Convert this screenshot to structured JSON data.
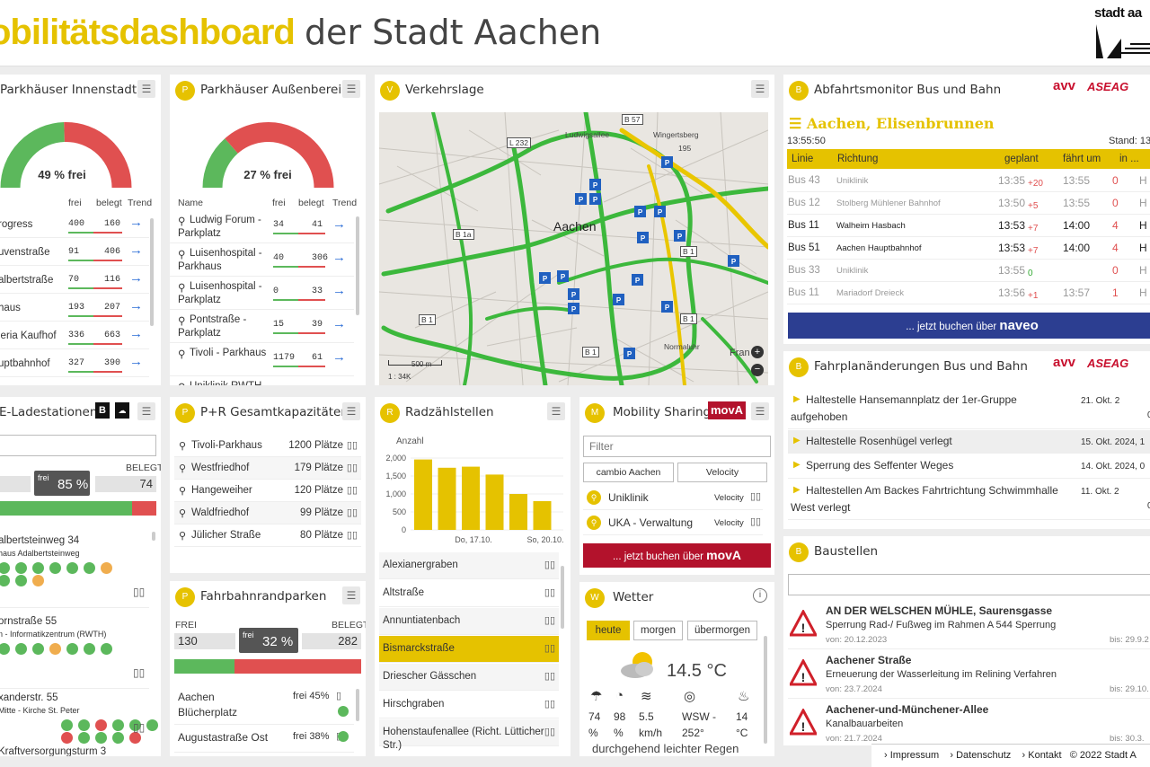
{
  "header": {
    "title_bold": "obilitätsdashboard",
    "title_rest": "der Stadt Aachen",
    "logo_text": "stadt aa"
  },
  "parkhaeuser_innen": {
    "title": "Parkhäuser Innenstadt",
    "gauge": "49 % frei",
    "gauge_free_pct": 49,
    "col_free": "frei",
    "col_occ": "belegt",
    "col_trend": "Trend",
    "rows": [
      {
        "name": "rogress",
        "free": "400",
        "occ": "160"
      },
      {
        "name": "uvenstraße",
        "free": "91",
        "occ": "406"
      },
      {
        "name": "albertstraße",
        "free": "70",
        "occ": "116"
      },
      {
        "name": "haus",
        "free": "193",
        "occ": "207"
      },
      {
        "name": "leria Kaufhof",
        "free": "336",
        "occ": "663"
      },
      {
        "name": "uptbahnhof",
        "free": "327",
        "occ": "390"
      }
    ]
  },
  "parkhaeuser_aussen": {
    "title": "Parkhäuser Außenbereic",
    "gauge": "27 % frei",
    "gauge_free_pct": 27,
    "col_name": "Name",
    "col_free": "frei",
    "col_occ": "belegt",
    "col_trend": "Trend",
    "rows": [
      {
        "name1": "Ludwig Forum -",
        "name2": "Parkplatz",
        "free": "34",
        "occ": "41"
      },
      {
        "name1": "Luisenhospital -",
        "name2": "Parkhaus",
        "free": "40",
        "occ": "306"
      },
      {
        "name1": "Luisenhospital -",
        "name2": "Parkplatz",
        "free": "0",
        "occ": "33"
      },
      {
        "name1": "Pontstraße -",
        "name2": "Parkplatz",
        "free": "15",
        "occ": "39"
      },
      {
        "name1": "Tivoli - Parkhaus",
        "name2": "",
        "free": "1179",
        "occ": "61"
      },
      {
        "name1": "Uniklinik RWTH",
        "name2": "",
        "free": "",
        "occ": ""
      }
    ]
  },
  "verkehrslage": {
    "title": "Verkehrslage",
    "city": "Aachen",
    "scale": "500 m",
    "scale2": "1 : 34K",
    "labels": [
      "B 57",
      "L 232",
      "Wingertsberg",
      "195",
      "B 1a",
      "B 1",
      "B 1",
      "B 1",
      "B 1",
      "Fran",
      "Normaluhr",
      "Ludwigsallee"
    ]
  },
  "abfahrt": {
    "title": "Abfahrtsmonitor Bus und Bahn",
    "brand1": "avv",
    "brand2": "ASEAG",
    "stop": "Aachen, Elisenbrunnen",
    "time": "13:55:50",
    "stand": "Stand: 13",
    "cols": [
      "Linie",
      "Richtung",
      "geplant",
      "fährt um",
      "in ..."
    ],
    "rows": [
      {
        "line": "Bus 43",
        "dir": "Uniklinik",
        "plan": "13:35",
        "delay": "+20",
        "actual": "13:55",
        "in": "0",
        "h": "H"
      },
      {
        "line": "Bus 12",
        "dir": "Stolberg Mühlener Bahnhof",
        "plan": "13:50",
        "delay": "+5",
        "actual": "13:55",
        "in": "0",
        "h": "H"
      },
      {
        "line": "Bus 11",
        "dir": "Walheim Hasbach",
        "plan": "13:53",
        "delay": "+7",
        "actual": "14:00",
        "in": "4",
        "h": "H"
      },
      {
        "line": "Bus 51",
        "dir": "Aachen Hauptbahnhof",
        "plan": "13:53",
        "delay": "+7",
        "actual": "14:00",
        "in": "4",
        "h": "H"
      },
      {
        "line": "Bus 33",
        "dir": "Uniklinik",
        "plan": "13:55",
        "delay": "0",
        "actual": "",
        "in": "0",
        "h": "H"
      },
      {
        "line": "Bus 11",
        "dir": "Mariadorf Dreieck",
        "plan": "13:56",
        "delay": "+1",
        "actual": "13:57",
        "in": "1",
        "h": "H"
      }
    ],
    "button": "... jetzt buchen über ",
    "button_brand": "naveo"
  },
  "fahrplan": {
    "title": "Fahrplanänderungen Bus und Bahn",
    "brand1": "avv",
    "brand2": "ASEAG",
    "items": [
      {
        "l1": "Haltestelle Hansemannplatz der 1er-Gruppe",
        "l2": "aufgehoben",
        "date": "21. Okt. 2",
        "date2": "0"
      },
      {
        "l1": "Haltestelle Rosenhügel verlegt",
        "l2": "",
        "date": "15. Okt. 2024, 1",
        "date2": ""
      },
      {
        "l1": "Sperrung des Seffenter Weges",
        "l2": "",
        "date": "14. Okt. 2024, 0",
        "date2": ""
      },
      {
        "l1": "Haltestellen Am Backes Fahrtrichtung Schwimmhalle",
        "l2": "West verlegt",
        "date": "11. Okt. 2",
        "date2": "0"
      }
    ]
  },
  "baustellen": {
    "title": "Baustellen",
    "items": [
      {
        "t": "AN DER WELSCHEN MÜHLE, Saurensgasse",
        "d": "Sperrung Rad-/ Fußweg im Rahmen A 544 Sperrung",
        "von": "von: 20.12.2023",
        "bis": "bis: 29.9.2"
      },
      {
        "t": "Aachener Straße",
        "d": "Erneuerung der Wasserleitung im Relining Verfahren",
        "von": "von: 23.7.2024",
        "bis": "bis: 29.10."
      },
      {
        "t": "Aachener-und-Münchener-Allee",
        "d": "Kanalbauarbeiten",
        "von": "von: 21.7.2024",
        "bis": "bis: 30.3."
      }
    ]
  },
  "eladen": {
    "title": "E-Ladestationen",
    "col_occ": "BELEGT",
    "free_label": "frei",
    "free_pct": "85 %",
    "occ": "74",
    "free_fraction": 0.85,
    "items": [
      {
        "t": "albertsteinweg 34",
        "s": "haus Adalbertsteinweg"
      },
      {
        "t": "ornstraße 55",
        "s": "n - Informatikzentrum (RWTH)"
      },
      {
        "t": "xanderstr. 55",
        "s": "Mitte - Kirche St. Peter"
      },
      {
        "t": "Kraftversorgungsturm 3",
        "s": ""
      }
    ]
  },
  "pr": {
    "title": "P+R Gesamtkapazitäten",
    "rows": [
      {
        "n": "Tivoli-Parkhaus",
        "c": "1200 Plätze"
      },
      {
        "n": "Westfriedhof",
        "c": "179 Plätze"
      },
      {
        "n": "Hangeweiher",
        "c": "120 Plätze"
      },
      {
        "n": "Waldfriedhof",
        "c": "99 Plätze"
      },
      {
        "n": "Jülicher Straße",
        "c": "80 Plätze"
      }
    ]
  },
  "fahrbahn": {
    "title": "Fahrbahnrandparken",
    "l_free": "FREI",
    "l_occ": "BELEGT",
    "free": "130",
    "free_label": "frei",
    "pct": "32 %",
    "occ": "282",
    "free_fraction": 0.32,
    "rows": [
      {
        "n1": "Aachen",
        "n2": "Blücherplatz",
        "p": "frei 45%"
      },
      {
        "n1": "Augustastraße Ost",
        "n2": "",
        "p": "frei 38%"
      }
    ]
  },
  "rad": {
    "title": "Radzählstellen",
    "ylabel": "Anzahl",
    "ticks": [
      "2,000",
      "1,500",
      "1,000",
      "500",
      "0"
    ],
    "xt1": "Do, 17.10.",
    "xt2": "So, 20.10.",
    "rows": [
      "Alexianergraben",
      "Altstraße",
      "Annuntiatenbach",
      "Bismarckstraße",
      "Driescher Gässchen",
      "Hirschgraben",
      "Hohenstaufenallee (Richt. Lütticher",
      "Str.)"
    ]
  },
  "chart_data": {
    "type": "bar",
    "categories": [
      "",
      "",
      "",
      "",
      "",
      "",
      ""
    ],
    "values": [
      1960,
      1730,
      1760,
      1540,
      1000,
      800,
      0
    ],
    "xlabel": "",
    "ylabel": "Anzahl",
    "ylim": [
      0,
      2000
    ]
  },
  "sharing": {
    "title": "Mobility Sharing",
    "brand": "movA",
    "filter": "Filter",
    "tab1": "cambio Aachen",
    "tab2": "Velocity",
    "rows": [
      {
        "n": "Uniklinik",
        "p": "Velocity"
      },
      {
        "n": "UKA - Verwaltung",
        "p": "Velocity"
      }
    ],
    "button": "... jetzt buchen über ",
    "button_brand": "movA"
  },
  "wetter": {
    "title": "Wetter",
    "tabs": [
      "heute",
      "morgen",
      "übermorgen"
    ],
    "temp": "14.5 °C",
    "vals": [
      {
        "v": "74",
        "u": "%"
      },
      {
        "v": "98",
        "u": "%"
      },
      {
        "v": "5.5",
        "u": "km/h"
      },
      {
        "v": "WSW -",
        "u": "252°"
      },
      {
        "v": "14",
        "u": "°C"
      }
    ],
    "desc": "durchgehend leichter Regen"
  },
  "footer": {
    "l1": "Impressum",
    "l2": "Datenschutz",
    "l3": "Kontakt",
    "copy": "© 2022 Stadt A"
  }
}
